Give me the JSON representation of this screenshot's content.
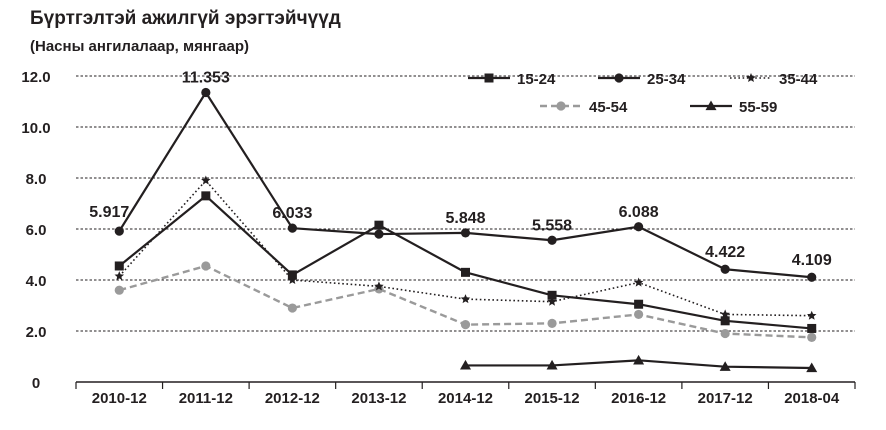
{
  "title": "Бүртгэлтэй ажилгүй эрэгтэйчүүд",
  "subtitle": "(Насны ангилалаар, мянгаар)",
  "chart_data": {
    "type": "line",
    "title": "Бүртгэлтэй ажилгүй эрэгтэйчүүд",
    "subtitle": "(Насны ангилалаар, мянгаар)",
    "xlabel": "",
    "ylabel": "",
    "categories": [
      "2010-12",
      "2011-12",
      "2012-12",
      "2013-12",
      "2014-12",
      "2015-12",
      "2016-12",
      "2017-12",
      "2018-04"
    ],
    "ylim": [
      0,
      12
    ],
    "yticks": [
      "0",
      "2.0",
      "4.0",
      "6.0",
      "8.0",
      "10.0",
      "12.0"
    ],
    "grid": "horizontal dashed",
    "legend": "top-right",
    "series": [
      {
        "name": "15-24",
        "marker": "square",
        "dash": "solid",
        "color": "#231f20",
        "width": 2.2,
        "values": [
          4.55,
          7.3,
          4.2,
          6.15,
          4.3,
          3.4,
          3.05,
          2.4,
          2.1
        ]
      },
      {
        "name": "25-34",
        "marker": "circle",
        "dash": "solid",
        "color": "#231f20",
        "width": 2.2,
        "values": [
          5.917,
          11.353,
          6.033,
          5.8,
          5.848,
          5.558,
          6.088,
          4.422,
          4.109
        ]
      },
      {
        "name": "35-44",
        "marker": "star",
        "dash": "dotted",
        "color": "#231f20",
        "width": 1.6,
        "values": [
          4.15,
          7.9,
          4.0,
          3.75,
          3.25,
          3.15,
          3.9,
          2.65,
          2.6
        ]
      },
      {
        "name": "45-54",
        "marker": "circle",
        "dash": "dashed",
        "color": "#9a9a9a",
        "width": 2.4,
        "values": [
          3.6,
          4.55,
          2.9,
          3.65,
          2.25,
          2.3,
          2.65,
          1.9,
          1.75
        ]
      },
      {
        "name": "55-59",
        "marker": "triangle",
        "dash": "solid",
        "color": "#231f20",
        "width": 2.2,
        "values": [
          null,
          null,
          null,
          null,
          0.65,
          0.65,
          0.85,
          0.6,
          0.55
        ]
      }
    ],
    "annotations": [
      {
        "series": "25-34",
        "index": 0,
        "text": "5.917"
      },
      {
        "series": "25-34",
        "index": 1,
        "text": "11.353"
      },
      {
        "series": "25-34",
        "index": 2,
        "text": "6.033"
      },
      {
        "series": "25-34",
        "index": 4,
        "text": "5.848"
      },
      {
        "series": "25-34",
        "index": 5,
        "text": "5.558"
      },
      {
        "series": "25-34",
        "index": 6,
        "text": "6.088"
      },
      {
        "series": "25-34",
        "index": 7,
        "text": "4.422"
      },
      {
        "series": "25-34",
        "index": 8,
        "text": "4.109"
      }
    ]
  }
}
